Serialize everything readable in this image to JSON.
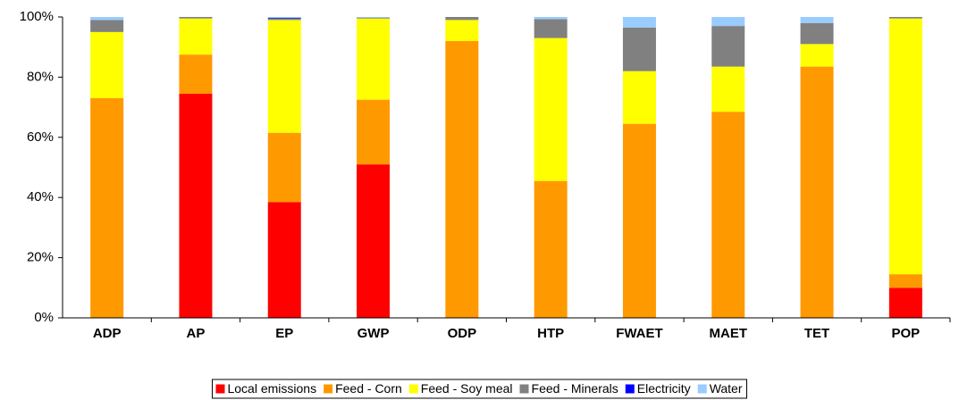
{
  "chart_data": {
    "type": "stacked-bar",
    "categories": [
      "ADP",
      "AP",
      "EP",
      "GWP",
      "ODP",
      "HTP",
      "FWAET",
      "MAET",
      "TET",
      "POP"
    ],
    "series": [
      {
        "name": "Local emissions",
        "color": "#ff0000",
        "values": [
          0,
          74.5,
          38.5,
          51,
          0,
          0,
          0,
          0,
          0,
          10
        ]
      },
      {
        "name": "Feed - Corn",
        "color": "#ff9900",
        "values": [
          73,
          13,
          23,
          21.5,
          92,
          45.5,
          64.5,
          68.5,
          83.5,
          4.5
        ]
      },
      {
        "name": "Feed - Soy meal",
        "color": "#ffff00",
        "values": [
          22,
          12,
          37.5,
          27,
          7,
          47.5,
          17.5,
          15,
          7.5,
          85
        ]
      },
      {
        "name": "Feed - Minerals",
        "color": "#808080",
        "values": [
          4,
          0.5,
          0.5,
          0.3,
          1,
          6.3,
          14.5,
          13.5,
          7,
          0.5
        ]
      },
      {
        "name": "Electricity",
        "color": "#0000ff",
        "values": [
          0,
          0,
          0.2,
          0,
          0,
          0,
          0,
          0,
          0,
          0
        ]
      },
      {
        "name": "Water",
        "color": "#99ccff",
        "values": [
          1,
          0,
          0.3,
          0.2,
          0,
          0.7,
          3.5,
          3,
          2,
          0
        ]
      }
    ],
    "ylim": [
      0,
      100
    ],
    "yticks": [
      {
        "value": 0,
        "label": "0%"
      },
      {
        "value": 20,
        "label": "20%"
      },
      {
        "value": 40,
        "label": "40%"
      },
      {
        "value": 60,
        "label": "60%"
      },
      {
        "value": 80,
        "label": "80%"
      },
      {
        "value": 100,
        "label": "100%"
      }
    ],
    "legend": "bottom"
  }
}
